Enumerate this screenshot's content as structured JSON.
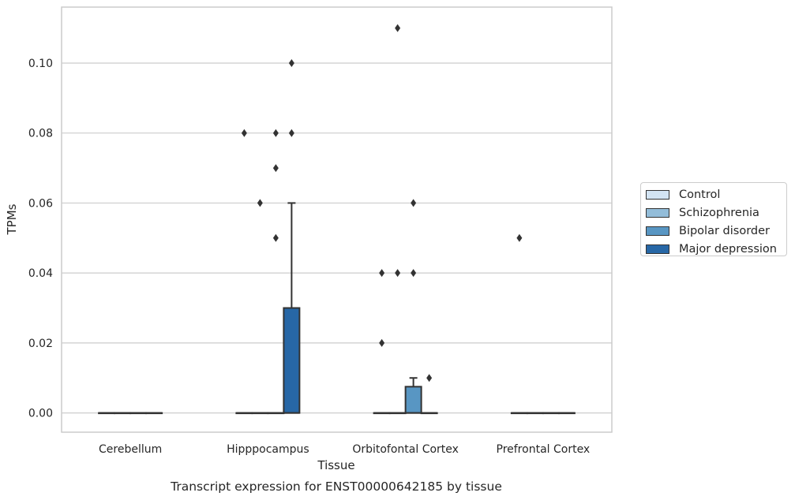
{
  "chart_data": {
    "type": "box",
    "title": "Transcript expression for ENST00000642185 by tissue",
    "xlabel": "Tissue",
    "ylabel": "TPMs",
    "ylim": [
      -0.0055,
      0.116
    ],
    "yticks": [
      "0.00",
      "0.02",
      "0.04",
      "0.06",
      "0.08",
      "0.10"
    ],
    "grid": true,
    "legend_position": "right",
    "categories": [
      "Cerebellum",
      "Hipppocampus",
      "Orbitofontal Cortex",
      "Prefrontal Cortex"
    ],
    "series": [
      {
        "name": "Control",
        "color": "#d3e4f3"
      },
      {
        "name": "Schizophrenia",
        "color": "#93bdd9"
      },
      {
        "name": "Bipolar disorder",
        "color": "#5896c3"
      },
      {
        "name": "Major depression",
        "color": "#2767a6"
      }
    ],
    "boxes": [
      {
        "category": "Cerebellum",
        "series": "Control",
        "q1": 0,
        "median": 0,
        "q3": 0,
        "whisker_low": 0,
        "whisker_high": 0,
        "outliers": []
      },
      {
        "category": "Cerebellum",
        "series": "Schizophrenia",
        "q1": 0,
        "median": 0,
        "q3": 0,
        "whisker_low": 0,
        "whisker_high": 0,
        "outliers": []
      },
      {
        "category": "Cerebellum",
        "series": "Bipolar disorder",
        "q1": 0,
        "median": 0,
        "q3": 0,
        "whisker_low": 0,
        "whisker_high": 0,
        "outliers": []
      },
      {
        "category": "Cerebellum",
        "series": "Major depression",
        "q1": 0,
        "median": 0,
        "q3": 0,
        "whisker_low": 0,
        "whisker_high": 0,
        "outliers": []
      },
      {
        "category": "Hipppocampus",
        "series": "Control",
        "q1": 0,
        "median": 0,
        "q3": 0,
        "whisker_low": 0,
        "whisker_high": 0,
        "outliers": [
          0.08
        ]
      },
      {
        "category": "Hipppocampus",
        "series": "Schizophrenia",
        "q1": 0,
        "median": 0,
        "q3": 0,
        "whisker_low": 0,
        "whisker_high": 0,
        "outliers": [
          0.06
        ]
      },
      {
        "category": "Hipppocampus",
        "series": "Bipolar disorder",
        "q1": 0,
        "median": 0,
        "q3": 0,
        "whisker_low": 0,
        "whisker_high": 0,
        "outliers": [
          0.08,
          0.07,
          0.05
        ]
      },
      {
        "category": "Hipppocampus",
        "series": "Major depression",
        "q1": 0,
        "median": 0,
        "q3": 0.03,
        "whisker_low": 0,
        "whisker_high": 0.06,
        "outliers": [
          0.1,
          0.08
        ]
      },
      {
        "category": "Orbitofontal Cortex",
        "series": "Control",
        "q1": 0,
        "median": 0,
        "q3": 0,
        "whisker_low": 0,
        "whisker_high": 0,
        "outliers": [
          0.04,
          0.02
        ]
      },
      {
        "category": "Orbitofontal Cortex",
        "series": "Schizophrenia",
        "q1": 0,
        "median": 0,
        "q3": 0,
        "whisker_low": 0,
        "whisker_high": 0,
        "outliers": [
          0.11,
          0.04
        ]
      },
      {
        "category": "Orbitofontal Cortex",
        "series": "Bipolar disorder",
        "q1": 0,
        "median": 0,
        "q3": 0.0075,
        "whisker_low": 0,
        "whisker_high": 0.01,
        "outliers": [
          0.06,
          0.04
        ]
      },
      {
        "category": "Orbitofontal Cortex",
        "series": "Major depression",
        "q1": 0,
        "median": 0,
        "q3": 0,
        "whisker_low": 0,
        "whisker_high": 0,
        "outliers": [
          0.01
        ]
      },
      {
        "category": "Prefrontal Cortex",
        "series": "Control",
        "q1": 0,
        "median": 0,
        "q3": 0,
        "whisker_low": 0,
        "whisker_high": 0,
        "outliers": [
          0.05
        ]
      },
      {
        "category": "Prefrontal Cortex",
        "series": "Schizophrenia",
        "q1": 0,
        "median": 0,
        "q3": 0,
        "whisker_low": 0,
        "whisker_high": 0,
        "outliers": []
      },
      {
        "category": "Prefrontal Cortex",
        "series": "Bipolar disorder",
        "q1": 0,
        "median": 0,
        "q3": 0,
        "whisker_low": 0,
        "whisker_high": 0,
        "outliers": []
      },
      {
        "category": "Prefrontal Cortex",
        "series": "Major depression",
        "q1": 0,
        "median": 0,
        "q3": 0,
        "whisker_low": 0,
        "whisker_high": 0,
        "outliers": []
      }
    ]
  }
}
